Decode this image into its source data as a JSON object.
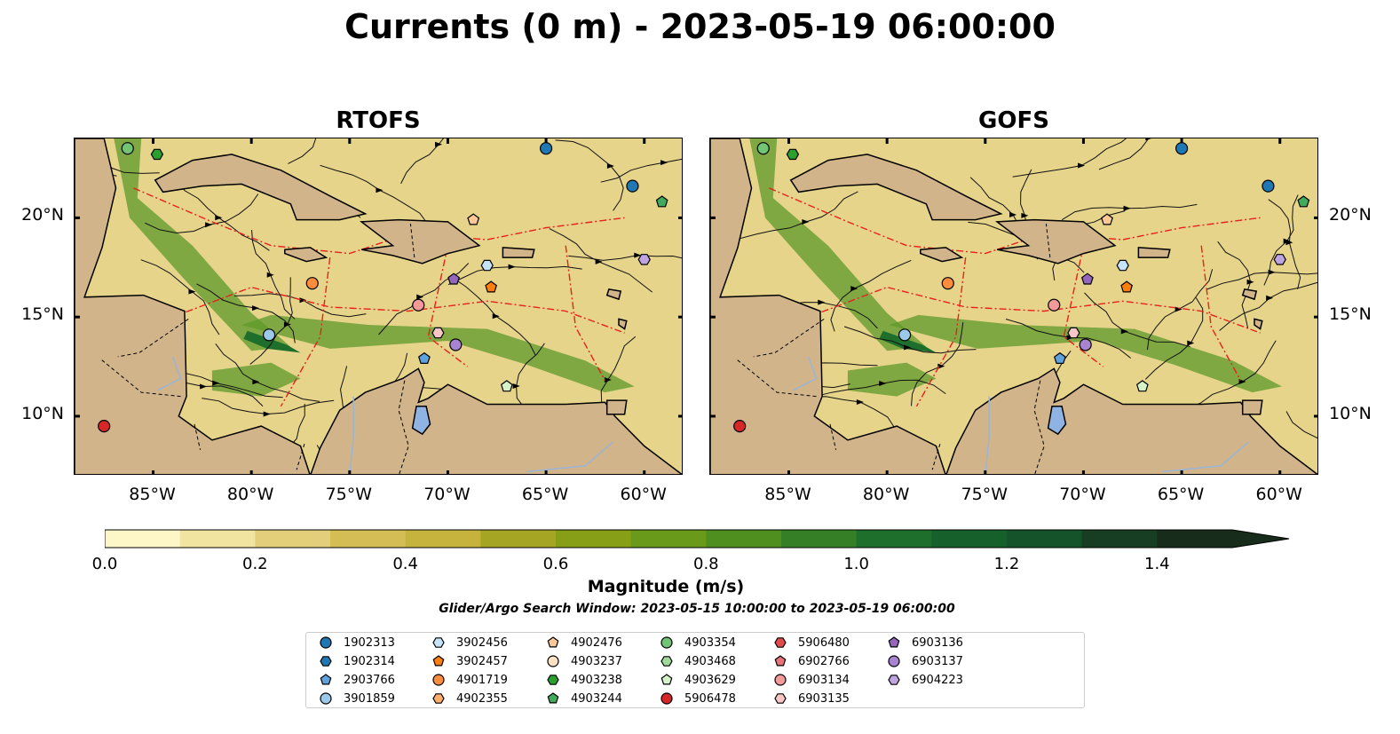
{
  "title": "Currents (0 m) - 2023-05-19 06:00:00",
  "panels": [
    {
      "id": "rtofs",
      "title": "RTOFS"
    },
    {
      "id": "gofs",
      "title": "GOFS"
    }
  ],
  "map_extent": {
    "lon": [
      -89,
      -58
    ],
    "lat": [
      7,
      24
    ]
  },
  "lon_ticks": [
    "85°W",
    "80°W",
    "75°W",
    "70°W",
    "65°W",
    "60°W"
  ],
  "lat_ticks": [
    "20°N",
    "15°N",
    "10°N"
  ],
  "colorbar": {
    "label": "Magnitude (m/s)",
    "range": [
      0,
      1.5
    ],
    "ticks": [
      "0.0",
      "0.2",
      "0.4",
      "0.6",
      "0.8",
      "1.0",
      "1.2",
      "1.4"
    ],
    "colors": [
      "#fdf6c7",
      "#f1e3a0",
      "#e3cf7a",
      "#d4bd55",
      "#c5b33e",
      "#a6a423",
      "#879f17",
      "#699a1a",
      "#4e8f20",
      "#357f27",
      "#1e6e2c",
      "#16602c",
      "#15542b",
      "#173e22",
      "#172c1b"
    ],
    "extend": "max"
  },
  "search_window": "Glider/Argo Search Window: 2023-05-15 10:00:00 to 2023-05-19 06:00:00",
  "legend": [
    {
      "id": "1902313",
      "color": "#1f77b4",
      "marker": "circle"
    },
    {
      "id": "1902314",
      "color": "#1f77b4",
      "marker": "hexagon"
    },
    {
      "id": "2903766",
      "color": "#5fa2dd",
      "marker": "pentagon"
    },
    {
      "id": "3901859",
      "color": "#9cc8ea",
      "marker": "circle"
    },
    {
      "id": "3902456",
      "color": "#c6e4f7",
      "marker": "hexagon"
    },
    {
      "id": "3902457",
      "color": "#ff7f0e",
      "marker": "pentagon"
    },
    {
      "id": "4901719",
      "color": "#fd8d3c",
      "marker": "circle"
    },
    {
      "id": "4902355",
      "color": "#fdae6b",
      "marker": "hexagon"
    },
    {
      "id": "4902476",
      "color": "#fdc897",
      "marker": "pentagon"
    },
    {
      "id": "4903237",
      "color": "#fee0c4",
      "marker": "circle"
    },
    {
      "id": "4903238",
      "color": "#2ca02c",
      "marker": "hexagon"
    },
    {
      "id": "4903244",
      "color": "#41ab5d",
      "marker": "pentagon"
    },
    {
      "id": "4903354",
      "color": "#74c476",
      "marker": "circle"
    },
    {
      "id": "4903468",
      "color": "#a1d99b",
      "marker": "hexagon"
    },
    {
      "id": "4903629",
      "color": "#d5f2c8",
      "marker": "pentagon"
    },
    {
      "id": "5906478",
      "color": "#d62728",
      "marker": "circle"
    },
    {
      "id": "5906480",
      "color": "#e34a4a",
      "marker": "hexagon"
    },
    {
      "id": "6902766",
      "color": "#e9737a",
      "marker": "pentagon"
    },
    {
      "id": "6903134",
      "color": "#f29a9a",
      "marker": "circle"
    },
    {
      "id": "6903135",
      "color": "#f9c6c6",
      "marker": "hexagon"
    },
    {
      "id": "6903136",
      "color": "#9467bd",
      "marker": "pentagon"
    },
    {
      "id": "6903137",
      "color": "#a883d0",
      "marker": "circle"
    },
    {
      "id": "6904223",
      "color": "#bfa5e0",
      "marker": "hexagon"
    }
  ],
  "floats": {
    "rtofs": [
      {
        "id": "4903354",
        "lon": -86.3,
        "lat": 23.5
      },
      {
        "id": "4903238",
        "lon": -84.8,
        "lat": 23.2
      },
      {
        "id": "1902313",
        "lon": -65.0,
        "lat": 23.5
      },
      {
        "id": "1902313",
        "lon": -60.6,
        "lat": 21.6
      },
      {
        "id": "4903244",
        "lon": -59.1,
        "lat": 20.8
      },
      {
        "id": "4902476",
        "lon": -68.7,
        "lat": 19.9
      },
      {
        "id": "6904223",
        "lon": -60.0,
        "lat": 17.9
      },
      {
        "id": "3902456",
        "lon": -68.0,
        "lat": 17.6
      },
      {
        "id": "6903136",
        "lon": -69.7,
        "lat": 16.9
      },
      {
        "id": "3902457",
        "lon": -67.8,
        "lat": 16.5
      },
      {
        "id": "4901719",
        "lon": -76.9,
        "lat": 16.7
      },
      {
        "id": "6903134",
        "lon": -71.5,
        "lat": 15.6
      },
      {
        "id": "3901859",
        "lon": -79.1,
        "lat": 14.1
      },
      {
        "id": "6903135",
        "lon": -70.5,
        "lat": 14.2
      },
      {
        "id": "6903137",
        "lon": -69.6,
        "lat": 13.6
      },
      {
        "id": "2903766",
        "lon": -71.2,
        "lat": 12.9
      },
      {
        "id": "4903629",
        "lon": -67.0,
        "lat": 11.5
      },
      {
        "id": "5906478",
        "lon": -87.5,
        "lat": 9.5
      }
    ],
    "gofs": [
      {
        "id": "4903354",
        "lon": -86.3,
        "lat": 23.5
      },
      {
        "id": "4903238",
        "lon": -84.8,
        "lat": 23.2
      },
      {
        "id": "1902313",
        "lon": -65.0,
        "lat": 23.5
      },
      {
        "id": "1902313",
        "lon": -60.6,
        "lat": 21.6
      },
      {
        "id": "4903244",
        "lon": -58.8,
        "lat": 20.8
      },
      {
        "id": "4902476",
        "lon": -68.8,
        "lat": 19.9
      },
      {
        "id": "6904223",
        "lon": -60.0,
        "lat": 17.9
      },
      {
        "id": "3902456",
        "lon": -68.0,
        "lat": 17.6
      },
      {
        "id": "6903136",
        "lon": -69.8,
        "lat": 16.9
      },
      {
        "id": "3902457",
        "lon": -67.8,
        "lat": 16.5
      },
      {
        "id": "4901719",
        "lon": -76.9,
        "lat": 16.7
      },
      {
        "id": "6903134",
        "lon": -71.5,
        "lat": 15.6
      },
      {
        "id": "3901859",
        "lon": -79.1,
        "lat": 14.1
      },
      {
        "id": "6903135",
        "lon": -70.5,
        "lat": 14.2
      },
      {
        "id": "6903137",
        "lon": -69.9,
        "lat": 13.6
      },
      {
        "id": "2903766",
        "lon": -71.2,
        "lat": 12.9
      },
      {
        "id": "4903629",
        "lon": -67.0,
        "lat": 11.5
      },
      {
        "id": "5906478",
        "lon": -87.5,
        "lat": 9.5
      }
    ]
  }
}
